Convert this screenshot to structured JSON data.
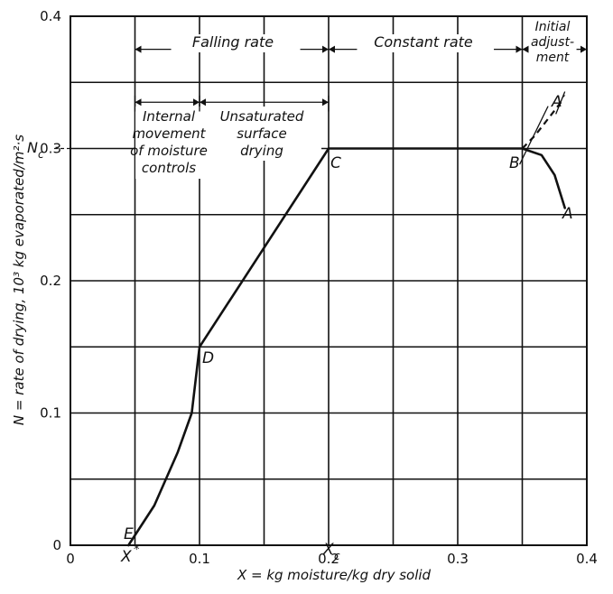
{
  "chart_data": {
    "type": "line",
    "xlabel": "X = kg moisture/kg dry solid",
    "ylabel": "N = rate of drying, 10³ kg evaporated/m²·s",
    "xlim": [
      0,
      0.4
    ],
    "ylim": [
      0,
      0.4
    ],
    "x_major_ticks": [
      0,
      0.1,
      0.2,
      0.3,
      0.4
    ],
    "x_minor_step": 0.05,
    "y_major_ticks": [
      0,
      0.1,
      0.2,
      0.3,
      0.4
    ],
    "y_minor_step": 0.05,
    "grid": true,
    "series": [
      {
        "role": "main",
        "points": [
          {
            "x": 0.045,
            "y": 0.0
          },
          {
            "x": 0.065,
            "y": 0.03
          },
          {
            "x": 0.083,
            "y": 0.07
          },
          {
            "x": 0.094,
            "y": 0.1
          },
          {
            "x": 0.1,
            "y": 0.15
          },
          {
            "x": 0.2,
            "y": 0.3
          },
          {
            "x": 0.35,
            "y": 0.3
          },
          {
            "x": 0.365,
            "y": 0.295
          },
          {
            "x": 0.375,
            "y": 0.28
          },
          {
            "x": 0.383,
            "y": 0.255
          }
        ]
      },
      {
        "role": "dashed",
        "points": [
          {
            "x": 0.35,
            "y": 0.3
          },
          {
            "x": 0.36,
            "y": 0.31
          },
          {
            "x": 0.372,
            "y": 0.325
          },
          {
            "x": 0.38,
            "y": 0.335
          }
        ]
      },
      {
        "role": "guide",
        "points": [
          {
            "x": 0.348,
            "y": 0.288
          },
          {
            "x": 0.37,
            "y": 0.332
          }
        ]
      }
    ],
    "point_labels": {
      "E": "E",
      "D": "D",
      "C": "C",
      "B": "B",
      "A": "A",
      "A_prime": "A′"
    },
    "axis_markers": {
      "x_star": "X",
      "x_star_sup": "*",
      "x_c": "X",
      "x_c_sub": "c",
      "n_c": "N",
      "n_c_sub": "c"
    },
    "regions": {
      "falling_rate": "Falling rate",
      "constant_rate": "Constant rate",
      "initial_adjustment": [
        "Initial",
        "adjust-",
        "ment"
      ],
      "internal_movement": [
        "Internal",
        "movement",
        "of moisture",
        "controls"
      ],
      "unsaturated_surface": [
        "Unsaturated",
        "surface",
        "drying"
      ]
    }
  }
}
